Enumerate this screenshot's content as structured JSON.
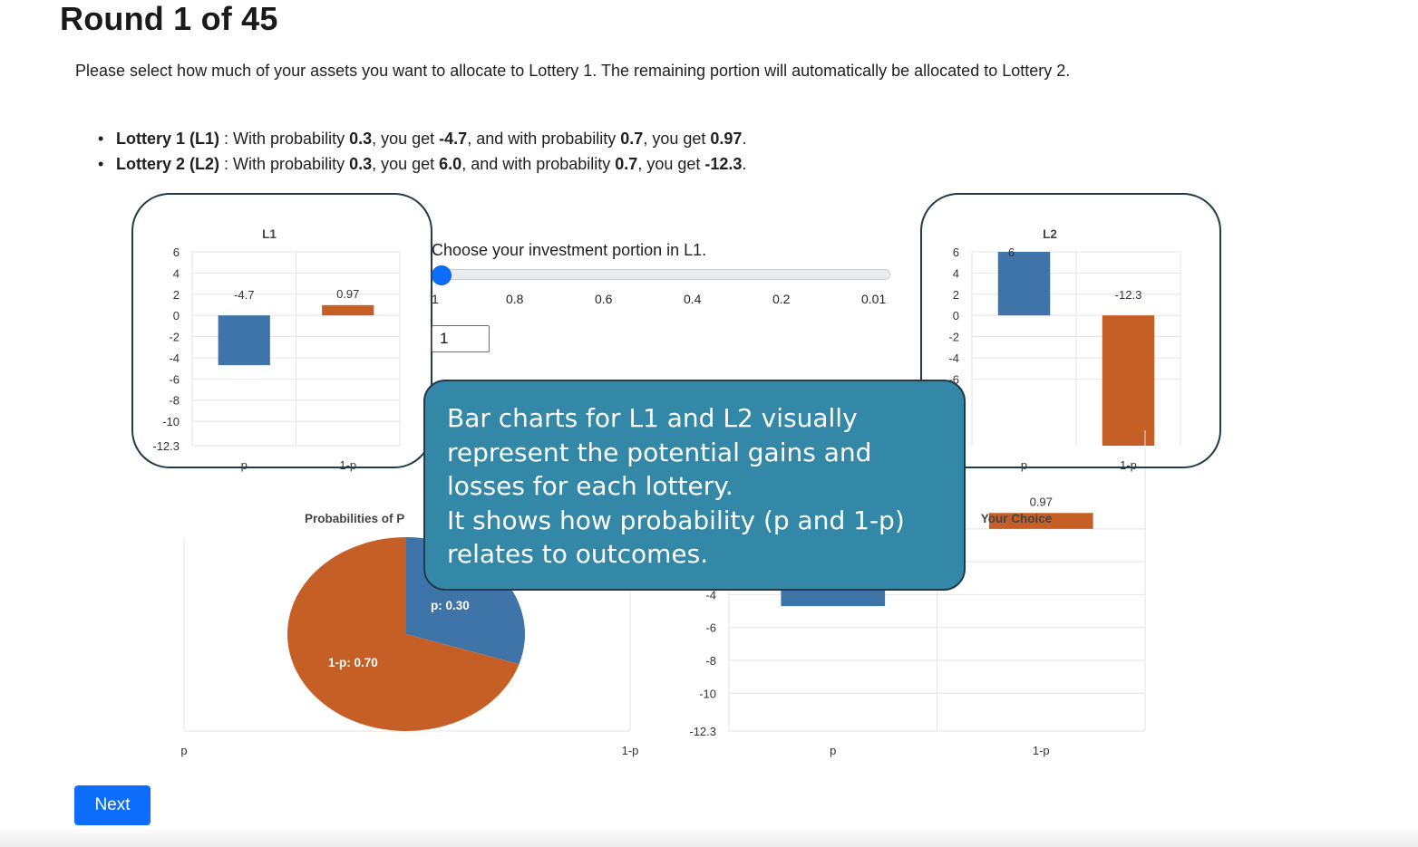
{
  "page": {
    "title": "Round 1 of 45",
    "instructions": "Please select how much of your assets you want to allocate to Lottery 1. The remaining portion will automatically be allocated to Lottery 2."
  },
  "lotteries": [
    {
      "label": "Lottery 1 (L1)",
      "sep": " : With probability ",
      "p": "0.3",
      "t1": ", you get ",
      "v1": "-4.7",
      "t2": ", and with probability ",
      "q": "0.7",
      "t3": ", you get ",
      "v2": "0.97",
      "end": "."
    },
    {
      "label": "Lottery 2 (L2)",
      "sep": " : With probability ",
      "p": "0.3",
      "t1": ", you get ",
      "v1": "6.0",
      "t2": ", and with probability ",
      "q": "0.7",
      "t3": ", you get ",
      "v2": "-12.3",
      "end": "."
    }
  ],
  "slider": {
    "label": "Choose your investment portion in L1.",
    "ticks": [
      "1",
      "0.8",
      "0.6",
      "0.4",
      "0.2",
      "0.01"
    ],
    "value": 1,
    "input_value": "1"
  },
  "tooltip": {
    "lines": [
      "Bar charts for L1 and L2 visually",
      "represent the potential gains and",
      "losses for each lottery.",
      "It shows how probability (p and 1-p)",
      "relates to outcomes."
    ]
  },
  "next_button": {
    "label": "Next"
  },
  "colors": {
    "blue": "#3e74a8",
    "orange": "#c65f25",
    "frame": "#1f3b4d",
    "button": "#0d6efd",
    "tooltip_bg": "#3388a7"
  },
  "chart_data": [
    {
      "id": "l1",
      "type": "bar",
      "title": "L1",
      "categories": [
        "p",
        "1-p"
      ],
      "values": [
        -4.7,
        0.97
      ],
      "data_labels": [
        "-4.7",
        "0.97"
      ],
      "colors": [
        "#3e74a8",
        "#c65f25"
      ],
      "ylim": [
        -12.3,
        6
      ],
      "yticks": [
        6,
        4,
        2,
        0,
        -2,
        -4,
        -6,
        -8,
        -10,
        -12.3
      ],
      "grid": true
    },
    {
      "id": "l2",
      "type": "bar",
      "title": "L2",
      "categories": [
        "p",
        "1-p"
      ],
      "values": [
        6.0,
        -12.3
      ],
      "data_labels": [
        "6",
        "-12.3"
      ],
      "colors": [
        "#3e74a8",
        "#c65f25"
      ],
      "ylim": [
        -12.3,
        6
      ],
      "yticks": [
        6,
        4,
        2,
        0,
        -2,
        -4,
        -6
      ],
      "grid": true
    },
    {
      "id": "prob",
      "type": "pie",
      "title": "Probabilities of P",
      "slices": [
        {
          "label": "p: 0.30",
          "value": 0.3,
          "color": "#3e74a8"
        },
        {
          "label": "1-p: 0.70",
          "value": 0.7,
          "color": "#c65f25"
        }
      ],
      "categories": [
        "p",
        "1-p"
      ]
    },
    {
      "id": "choice",
      "type": "bar",
      "title": "Your Choice",
      "categories": [
        "p",
        "1-p"
      ],
      "values": [
        -4.7,
        0.97
      ],
      "data_labels": [
        "",
        "0.97"
      ],
      "colors": [
        "#3e74a8",
        "#c65f25"
      ],
      "ylim": [
        -12.3,
        6
      ],
      "yticks": [
        0,
        -2,
        -4,
        -6,
        -8,
        -10,
        -12.3
      ],
      "grid": true
    }
  ]
}
